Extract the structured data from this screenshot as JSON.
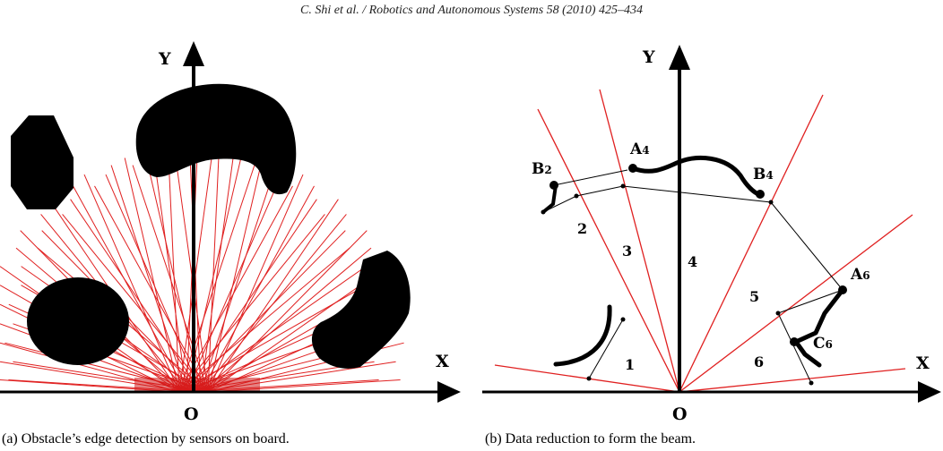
{
  "header": "C. Shi et al. / Robotics and Autonomous Systems 58 (2010) 425–434",
  "panel_a": {
    "y_label": "Y",
    "x_label": "X",
    "origin_label": "O",
    "caption": "(a) Obstacle’s edge detection by sensors on board."
  },
  "panel_b": {
    "y_label": "Y",
    "x_label": "X",
    "origin_label": "O",
    "regions": [
      "1",
      "2",
      "3",
      "4",
      "5",
      "6"
    ],
    "points": {
      "A4": {
        "letter": "A",
        "sub": "4"
      },
      "B4": {
        "letter": "B",
        "sub": "4"
      },
      "B2": {
        "letter": "B",
        "sub": "2"
      },
      "A6": {
        "letter": "A",
        "sub": "6"
      },
      "C6": {
        "letter": "C",
        "sub": "6"
      }
    },
    "caption": "(b) Data reduction to form the beam."
  },
  "colors": {
    "beam": "#e02020",
    "obstacle": "#000000",
    "axis": "#000000"
  }
}
